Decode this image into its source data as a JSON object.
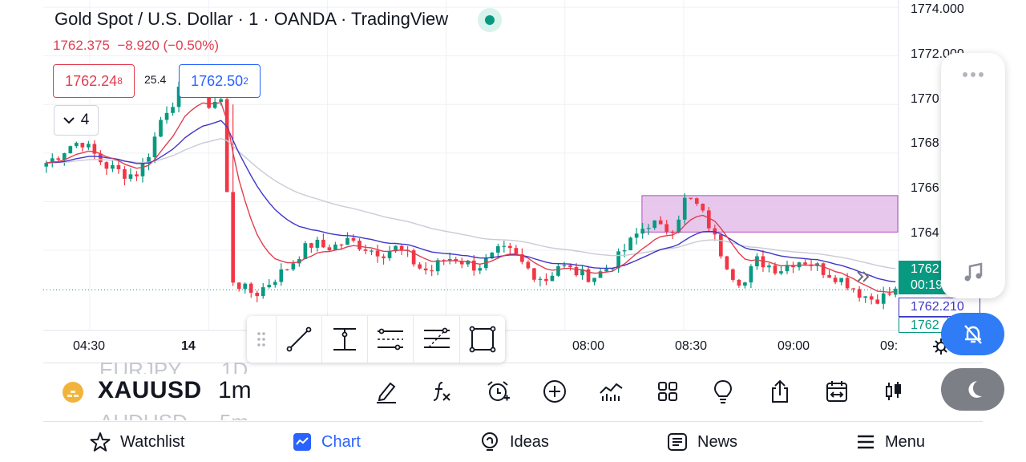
{
  "header": {
    "title": "Gold Spot / U.S. Dollar · 1 · OANDA · TradingView",
    "last_price": "1762.375",
    "change": "−8.920 (−0.50%)",
    "sell_price": "1762.24",
    "sell_price_small": "8",
    "buy_price": "1762.50",
    "buy_price_small": "2",
    "spread": "25.4",
    "indicators_count": "4"
  },
  "price_axis": {
    "labels": [
      "1774.000",
      "1772.000",
      "1770",
      "1768",
      "1766",
      "1764"
    ],
    "current_price_tag": "1762",
    "countdown": "00:19",
    "ma_tag": "1762.210",
    "bottom_tag": "1762"
  },
  "time_axis": {
    "labels": [
      "04:30",
      "14",
      "08:00",
      "08:30",
      "09:00",
      "09:"
    ]
  },
  "chart_data": {
    "type": "candlestick",
    "symbol": "XAUUSD",
    "interval": "1m",
    "y_axis_labels": [
      1774,
      1772,
      1770,
      1768,
      1766,
      1764
    ],
    "ylim": [
      1760.7,
      1774.3
    ],
    "current_price": 1762.375,
    "moving_averages": [
      {
        "color": "#e03e4f",
        "last_value": 1762.3
      },
      {
        "color": "#3f37c9",
        "last_value": 1762.21
      },
      {
        "color": "#c9cbd6"
      }
    ],
    "approx_closes": [
      1767.6,
      1767.9,
      1768.3,
      1768.5,
      1768.0,
      1767.5,
      1767.3,
      1767.1,
      1767.2,
      1768.2,
      1769.6,
      1770.2,
      1771.0,
      1770.7,
      1770.0,
      1770.3,
      1762.8,
      1762.4,
      1762.2,
      1762.6,
      1763.0,
      1763.4,
      1764.0,
      1764.3,
      1764.1,
      1764.2,
      1764.4,
      1764.2,
      1764.0,
      1763.9,
      1764.1,
      1763.8,
      1763.3,
      1763.1,
      1763.6,
      1763.7,
      1763.5,
      1763.3,
      1763.6,
      1764.0,
      1763.9,
      1763.4,
      1763.0,
      1762.8,
      1763.4,
      1763.2,
      1763.0,
      1762.9,
      1763.2,
      1763.6,
      1764.2,
      1764.8,
      1765.2,
      1764.8,
      1765.0,
      1766.2,
      1765.8,
      1765.0,
      1763.9,
      1763.0,
      1762.6,
      1763.6,
      1763.4,
      1763.2,
      1763.5,
      1763.6,
      1763.4,
      1763.1,
      1762.9,
      1762.6,
      1762.2,
      1762.0,
      1762.1,
      1762.3
    ]
  },
  "supply_zone": {
    "top": 1766.25,
    "bottom": 1764.75,
    "color": "#e3bde8"
  },
  "drawing_toolbar": [
    "trend-line",
    "vertical-line",
    "parallel-channel",
    "fib-retracement",
    "rectangle"
  ],
  "bottom_bar": {
    "ghost_symbol_above": "EURJPY",
    "ghost_interval_above": "1D",
    "symbol": "XAUUSD",
    "interval": "1m",
    "ghost_symbol_below": "AUDUSD",
    "ghost_interval_below": "5m",
    "tools": [
      "draw-icon",
      "function-icon",
      "alarm-add-icon",
      "add-icon",
      "indicators-icon",
      "layout-icon",
      "ideas-bulb-icon",
      "share-icon",
      "replay-icon",
      "candle-type-icon"
    ]
  },
  "nav": {
    "watchlist": "Watchlist",
    "chart": "Chart",
    "ideas": "Ideas",
    "news": "News",
    "menu": "Menu"
  },
  "colors": {
    "up": "#089981",
    "down": "#f23645",
    "ma_fast": "#e03e4f",
    "ma_slow": "#3f37c9",
    "accent": "#2962ff",
    "zone": "#e3bde8"
  }
}
